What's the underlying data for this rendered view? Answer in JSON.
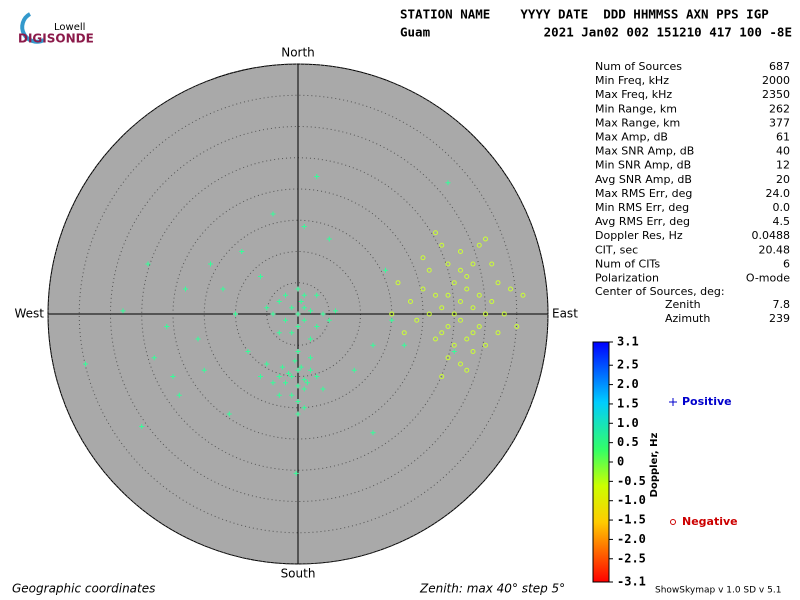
{
  "header": {
    "logo_top": "Lowell",
    "logo_bottom": "DIGISONDE",
    "columns": "STATION NAME    YYYY DATE  DDD HHMMSS AXN PPS IGP",
    "station": "Guam",
    "values": "2021 Jan02 002 151210 417 100 -8E"
  },
  "chart_data": {
    "type": "skymap",
    "directions": {
      "north": "North",
      "east": "East",
      "south": "South",
      "west": "West"
    },
    "rlim": [
      0,
      40
    ],
    "rticks": [
      5,
      10,
      15,
      20,
      25,
      30,
      35,
      40
    ],
    "series": [
      {
        "name": "Positive",
        "marker": "plus",
        "color": "#33ff99",
        "legend_color": "#0000cc",
        "x": [
          -1,
          0,
          -2,
          1,
          0.5,
          -1.5,
          2,
          -3,
          1,
          0,
          -0.5,
          1.5,
          -2.5,
          3,
          -1,
          0,
          2,
          -4,
          0,
          1,
          -3,
          4,
          -6,
          -5,
          0,
          -0.3,
          0,
          1,
          -1,
          2,
          -2,
          0.5,
          3,
          -3,
          1,
          -1,
          4,
          -4,
          2,
          -2,
          0,
          5,
          -5,
          3,
          -3,
          6,
          0,
          1,
          -24,
          -21,
          -28,
          -18,
          -16,
          -14,
          -12,
          -10,
          -8,
          -6,
          -9,
          -23,
          -20,
          -15,
          -25,
          -19,
          -11,
          -4,
          1,
          5,
          12,
          15,
          9,
          14,
          17,
          25,
          -34,
          12,
          3,
          24
        ],
        "y": [
          -10,
          -9,
          -11,
          -10.5,
          -8.5,
          -9.5,
          -9,
          -10,
          -12,
          -11.5,
          -7.5,
          -11,
          -8.5,
          -10,
          -13,
          -6,
          -7,
          -11,
          -14,
          -15,
          -13,
          -12,
          -10,
          -8,
          -16,
          -25.5,
          0,
          -1,
          1,
          0.5,
          -1,
          2,
          -2,
          2,
          3,
          -3,
          0,
          0,
          -4,
          3,
          4,
          -1,
          1,
          3,
          -3,
          0.5,
          -2,
          1,
          8,
          -2,
          0.5,
          4,
          -4,
          8,
          4,
          0,
          -6,
          6,
          10,
          -7,
          -10,
          -9,
          -18,
          -13,
          -16,
          16,
          14,
          12,
          -5,
          -1,
          -9,
          7,
          -5,
          -6,
          -8,
          -19,
          22,
          21
        ]
      },
      {
        "name": "Negative",
        "marker": "circle",
        "color": "#ccff33",
        "legend_color": "#cc0000",
        "x": [
          26,
          24,
          28,
          25,
          27,
          23,
          29,
          26,
          24,
          28,
          22,
          30,
          25,
          27,
          23,
          29,
          21,
          31,
          26,
          24,
          28,
          20,
          32,
          25,
          27,
          22,
          30,
          19,
          33,
          26,
          23,
          29,
          18,
          34,
          21,
          31,
          24,
          28,
          17,
          35,
          20,
          32,
          26,
          16,
          36,
          30,
          22,
          15,
          27,
          23
        ],
        "y": [
          2,
          3,
          1,
          0,
          4,
          1,
          3,
          -1,
          -2,
          -3,
          3,
          0,
          5,
          6,
          -3,
          -2,
          0,
          2,
          7,
          8,
          8,
          4,
          5,
          -5,
          -4,
          -4,
          -5,
          -1,
          0,
          10,
          11,
          11,
          2,
          4,
          7,
          8,
          -7,
          -6,
          -3,
          -2,
          9,
          -3,
          -8,
          5,
          3,
          12,
          13,
          0,
          -9,
          -10
        ]
      }
    ],
    "colorbar": {
      "label": "Doppler, Hz",
      "lim": [
        -3.1,
        3.1
      ],
      "ticks": [
        3.1,
        2.5,
        {
          "value": 2,
          "label": "2.0"
        },
        1.5,
        {
          "value": 1,
          "label": "1.0"
        },
        0.5,
        0,
        -0.5,
        {
          "value": -1,
          "label": "-1.0"
        },
        -1.5,
        {
          "value": -2,
          "label": "-2.0"
        },
        -2.5,
        -3.1
      ]
    }
  },
  "stats": [
    [
      "Num of Sources",
      "687"
    ],
    [
      "Min Freq, kHz",
      "2000"
    ],
    [
      "Max Freq, kHz",
      "2350"
    ],
    [
      "Min Range, km",
      "262"
    ],
    [
      "Max Range, km",
      "377"
    ],
    [
      "Max Amp, dB",
      "61"
    ],
    [
      "Max SNR Amp, dB",
      "40"
    ],
    [
      "Min SNR Amp, dB",
      "12"
    ],
    [
      "Avg SNR Amp, dB",
      "20"
    ],
    [
      "Max RMS Err, deg",
      "24.0"
    ],
    [
      "Min RMS Err, deg",
      "0.0"
    ],
    [
      "Avg RMS Err, deg",
      "4.5"
    ],
    [
      "Doppler Res, Hz",
      "0.0488"
    ],
    [
      "CIT, sec",
      "20.48"
    ],
    [
      "Num of CITs",
      "6"
    ],
    [
      "Polarization",
      "O-mode"
    ]
  ],
  "center": {
    "title": "Center of Sources, deg:",
    "rows": [
      [
        "Zenith",
        "7.8"
      ],
      [
        "Azimuth",
        "239"
      ]
    ]
  },
  "footer": {
    "left": "Geographic coordinates",
    "middle": "Zenith: max 40°  step 5°",
    "right": "ShowSkymap v 1.0  SD v 5.1"
  }
}
